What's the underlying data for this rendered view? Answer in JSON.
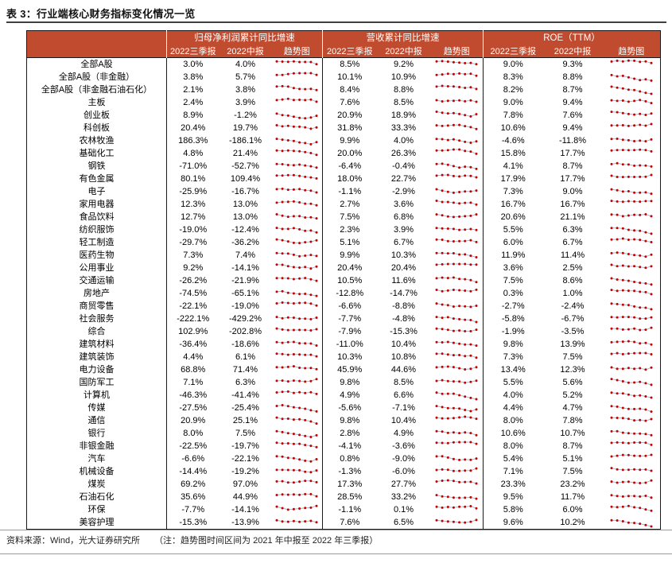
{
  "title": "表 3：行业端核心财务指标变化情况一览",
  "colors": {
    "header_bg": "#c04b2f",
    "header_text": "#ffffff",
    "border": "#1a1a1a",
    "spark_dot": "#c40000",
    "spark_line": "#a9b6c6"
  },
  "table": {
    "groups": [
      {
        "key": "np",
        "label": "归母净利润累计同比增速"
      },
      {
        "key": "rev",
        "label": "营收累计同比增速"
      },
      {
        "key": "roe",
        "label": "ROE（TTM）"
      }
    ],
    "sub_headers": [
      "2022三季报",
      "2022中报",
      "趋势图"
    ],
    "trend_icon": "trend-sparkline",
    "rows": [
      {
        "name": "全部A股",
        "np": [
          "3.0%",
          "4.0%"
        ],
        "rev": [
          "8.5%",
          "9.2%"
        ],
        "roe": [
          "9.0%",
          "9.3%"
        ]
      },
      {
        "name": "全部A股（非金融）",
        "np": [
          "3.8%",
          "5.7%"
        ],
        "rev": [
          "10.1%",
          "10.9%"
        ],
        "roe": [
          "8.3%",
          "8.8%"
        ]
      },
      {
        "name": "全部A股（非金融石油石化）",
        "np": [
          "2.1%",
          "3.8%"
        ],
        "rev": [
          "8.4%",
          "8.8%"
        ],
        "roe": [
          "8.2%",
          "8.7%"
        ]
      },
      {
        "name": "主板",
        "np": [
          "2.4%",
          "3.9%"
        ],
        "rev": [
          "7.6%",
          "8.5%"
        ],
        "roe": [
          "9.0%",
          "9.4%"
        ]
      },
      {
        "name": "创业板",
        "np": [
          "8.9%",
          "-1.2%"
        ],
        "rev": [
          "20.9%",
          "18.9%"
        ],
        "roe": [
          "7.8%",
          "7.6%"
        ]
      },
      {
        "name": "科创板",
        "np": [
          "20.4%",
          "19.7%"
        ],
        "rev": [
          "31.8%",
          "33.3%"
        ],
        "roe": [
          "10.6%",
          "9.4%"
        ]
      },
      {
        "name": "农林牧渔",
        "np": [
          "186.3%",
          "-186.1%"
        ],
        "rev": [
          "9.9%",
          "4.0%"
        ],
        "roe": [
          "-4.6%",
          "-11.8%"
        ]
      },
      {
        "name": "基础化工",
        "np": [
          "4.8%",
          "21.4%"
        ],
        "rev": [
          "20.0%",
          "26.3%"
        ],
        "roe": [
          "15.8%",
          "17.7%"
        ]
      },
      {
        "name": "钢铁",
        "np": [
          "-71.0%",
          "-52.7%"
        ],
        "rev": [
          "-6.4%",
          "-0.4%"
        ],
        "roe": [
          "4.1%",
          "8.7%"
        ]
      },
      {
        "name": "有色金属",
        "np": [
          "80.1%",
          "109.4%"
        ],
        "rev": [
          "18.0%",
          "22.7%"
        ],
        "roe": [
          "17.9%",
          "17.7%"
        ]
      },
      {
        "name": "电子",
        "np": [
          "-25.9%",
          "-16.7%"
        ],
        "rev": [
          "-1.1%",
          "-2.9%"
        ],
        "roe": [
          "7.3%",
          "9.0%"
        ]
      },
      {
        "name": "家用电器",
        "np": [
          "12.3%",
          "13.0%"
        ],
        "rev": [
          "2.7%",
          "3.6%"
        ],
        "roe": [
          "16.7%",
          "16.7%"
        ]
      },
      {
        "name": "食品饮料",
        "np": [
          "12.7%",
          "13.0%"
        ],
        "rev": [
          "7.5%",
          "6.8%"
        ],
        "roe": [
          "20.6%",
          "21.1%"
        ]
      },
      {
        "name": "纺织服饰",
        "np": [
          "-19.0%",
          "-12.4%"
        ],
        "rev": [
          "2.3%",
          "3.9%"
        ],
        "roe": [
          "5.5%",
          "6.3%"
        ]
      },
      {
        "name": "轻工制造",
        "np": [
          "-29.7%",
          "-36.2%"
        ],
        "rev": [
          "5.1%",
          "6.7%"
        ],
        "roe": [
          "6.0%",
          "6.7%"
        ]
      },
      {
        "name": "医药生物",
        "np": [
          "7.3%",
          "7.4%"
        ],
        "rev": [
          "9.9%",
          "10.3%"
        ],
        "roe": [
          "11.9%",
          "11.4%"
        ]
      },
      {
        "name": "公用事业",
        "np": [
          "9.2%",
          "-14.1%"
        ],
        "rev": [
          "20.4%",
          "20.4%"
        ],
        "roe": [
          "3.6%",
          "2.5%"
        ]
      },
      {
        "name": "交通运输",
        "np": [
          "-26.2%",
          "-21.9%"
        ],
        "rev": [
          "10.5%",
          "11.6%"
        ],
        "roe": [
          "7.5%",
          "8.6%"
        ]
      },
      {
        "name": "房地产",
        "np": [
          "-74.5%",
          "-65.1%"
        ],
        "rev": [
          "-12.8%",
          "-14.7%"
        ],
        "roe": [
          "0.3%",
          "1.0%"
        ]
      },
      {
        "name": "商贸零售",
        "np": [
          "-22.1%",
          "-19.0%"
        ],
        "rev": [
          "-6.6%",
          "-8.8%"
        ],
        "roe": [
          "-2.7%",
          "-2.4%"
        ]
      },
      {
        "name": "社会服务",
        "np": [
          "-222.1%",
          "-429.2%"
        ],
        "rev": [
          "-7.7%",
          "-4.8%"
        ],
        "roe": [
          "-5.8%",
          "-6.7%"
        ]
      },
      {
        "name": "综合",
        "np": [
          "102.9%",
          "-202.8%"
        ],
        "rev": [
          "-7.9%",
          "-15.3%"
        ],
        "roe": [
          "-1.9%",
          "-3.5%"
        ]
      },
      {
        "name": "建筑材料",
        "np": [
          "-36.4%",
          "-18.6%"
        ],
        "rev": [
          "-11.0%",
          "10.4%"
        ],
        "roe": [
          "9.8%",
          "13.9%"
        ]
      },
      {
        "name": "建筑装饰",
        "np": [
          "4.4%",
          "6.1%"
        ],
        "rev": [
          "10.3%",
          "10.8%"
        ],
        "roe": [
          "7.3%",
          "7.5%"
        ]
      },
      {
        "name": "电力设备",
        "np": [
          "68.8%",
          "71.4%"
        ],
        "rev": [
          "45.9%",
          "44.6%"
        ],
        "roe": [
          "13.4%",
          "12.3%"
        ]
      },
      {
        "name": "国防军工",
        "np": [
          "7.1%",
          "6.3%"
        ],
        "rev": [
          "9.8%",
          "8.5%"
        ],
        "roe": [
          "5.5%",
          "5.6%"
        ]
      },
      {
        "name": "计算机",
        "np": [
          "-46.3%",
          "-41.4%"
        ],
        "rev": [
          "4.9%",
          "6.6%"
        ],
        "roe": [
          "4.0%",
          "5.2%"
        ]
      },
      {
        "name": "传媒",
        "np": [
          "-27.5%",
          "-25.4%"
        ],
        "rev": [
          "-5.6%",
          "-7.1%"
        ],
        "roe": [
          "4.4%",
          "4.7%"
        ]
      },
      {
        "name": "通信",
        "np": [
          "20.9%",
          "25.1%"
        ],
        "rev": [
          "9.8%",
          "10.4%"
        ],
        "roe": [
          "8.0%",
          "7.8%"
        ]
      },
      {
        "name": "银行",
        "np": [
          "8.0%",
          "7.5%"
        ],
        "rev": [
          "2.8%",
          "4.9%"
        ],
        "roe": [
          "10.6%",
          "10.7%"
        ]
      },
      {
        "name": "非银金融",
        "np": [
          "-22.5%",
          "-19.7%"
        ],
        "rev": [
          "-4.1%",
          "-3.6%"
        ],
        "roe": [
          "8.0%",
          "8.7%"
        ]
      },
      {
        "name": "汽车",
        "np": [
          "-6.6%",
          "-22.1%"
        ],
        "rev": [
          "0.8%",
          "-9.0%"
        ],
        "roe": [
          "5.4%",
          "5.1%"
        ]
      },
      {
        "name": "机械设备",
        "np": [
          "-14.4%",
          "-19.2%"
        ],
        "rev": [
          "-1.3%",
          "-6.0%"
        ],
        "roe": [
          "7.1%",
          "7.5%"
        ]
      },
      {
        "name": "煤炭",
        "np": [
          "69.2%",
          "97.0%"
        ],
        "rev": [
          "17.3%",
          "27.7%"
        ],
        "roe": [
          "23.3%",
          "23.2%"
        ]
      },
      {
        "name": "石油石化",
        "np": [
          "35.6%",
          "44.9%"
        ],
        "rev": [
          "28.5%",
          "33.2%"
        ],
        "roe": [
          "9.5%",
          "11.7%"
        ]
      },
      {
        "name": "环保",
        "np": [
          "-7.7%",
          "-14.1%"
        ],
        "rev": [
          "-1.1%",
          "0.1%"
        ],
        "roe": [
          "5.8%",
          "6.0%"
        ]
      },
      {
        "name": "美容护理",
        "np": [
          "-15.3%",
          "-13.9%"
        ],
        "rev": [
          "7.6%",
          "6.5%"
        ],
        "roe": [
          "9.6%",
          "10.2%"
        ]
      }
    ]
  },
  "footer": {
    "source": "资料来源：Wind，光大证券研究所",
    "note": "（注：趋势图时间区间为 2021 年中报至 2022 年三季报）"
  }
}
